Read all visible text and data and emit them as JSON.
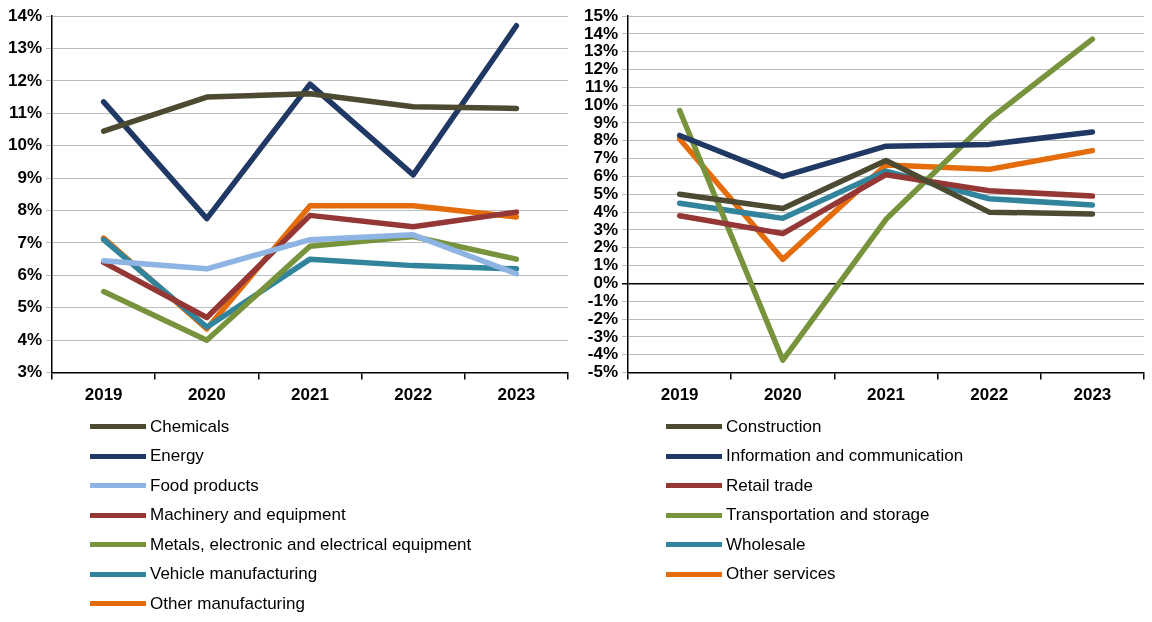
{
  "chart_data": [
    {
      "type": "line",
      "categories": [
        "2019",
        "2020",
        "2021",
        "2022",
        "2023"
      ],
      "ylim": [
        3,
        14
      ],
      "yticks": [
        {
          "value": 3,
          "label": "3%"
        },
        {
          "value": 4,
          "label": "4%"
        },
        {
          "value": 5,
          "label": "5%"
        },
        {
          "value": 6,
          "label": "6%"
        },
        {
          "value": 7,
          "label": "7%"
        },
        {
          "value": 8,
          "label": "8%"
        },
        {
          "value": 9,
          "label": "9%"
        },
        {
          "value": 10,
          "label": "10%"
        },
        {
          "value": 11,
          "label": "11%"
        },
        {
          "value": 12,
          "label": "12%"
        },
        {
          "value": 13,
          "label": "13%"
        },
        {
          "value": 14,
          "label": "14%"
        }
      ],
      "grid": "y",
      "legend": "bottom",
      "marker": "none",
      "line_style": "solid",
      "series": [
        {
          "name": "Chemicals",
          "color": "#4d4a32",
          "values": [
            10.45,
            11.5,
            11.6,
            11.2,
            11.15
          ]
        },
        {
          "name": "Energy",
          "color": "#1f3864",
          "values": [
            11.35,
            7.75,
            11.9,
            9.1,
            13.7
          ]
        },
        {
          "name": "Food products",
          "color": "#8db4e2",
          "values": [
            6.45,
            6.2,
            7.1,
            7.25,
            6.05
          ]
        },
        {
          "name": "Machinery and equipment",
          "color": "#953735",
          "values": [
            6.4,
            4.7,
            7.85,
            7.5,
            7.95
          ]
        },
        {
          "name": "Metals, electronic and electrical equipment",
          "color": "#77933c",
          "values": [
            5.5,
            4.0,
            6.9,
            7.2,
            6.5
          ]
        },
        {
          "name": "Vehicle manufacturing",
          "color": "#31849b",
          "values": [
            7.1,
            4.4,
            6.5,
            6.3,
            6.2
          ]
        },
        {
          "name": "Other manufacturing",
          "color": "#e46c0a",
          "values": [
            7.15,
            4.35,
            8.15,
            8.15,
            7.8
          ]
        }
      ]
    },
    {
      "type": "line",
      "categories": [
        "2019",
        "2020",
        "2021",
        "2022",
        "2023"
      ],
      "ylim": [
        -5,
        15
      ],
      "yticks": [
        {
          "value": -5,
          "label": "-5%"
        },
        {
          "value": -4,
          "label": "-4%"
        },
        {
          "value": -3,
          "label": "-3%"
        },
        {
          "value": -2,
          "label": "-2%"
        },
        {
          "value": -1,
          "label": "-1%"
        },
        {
          "value": 0,
          "label": "0%"
        },
        {
          "value": 1,
          "label": "1%"
        },
        {
          "value": 2,
          "label": "2%"
        },
        {
          "value": 3,
          "label": "3%"
        },
        {
          "value": 4,
          "label": "4%"
        },
        {
          "value": 5,
          "label": "5%"
        },
        {
          "value": 6,
          "label": "6%"
        },
        {
          "value": 7,
          "label": "7%"
        },
        {
          "value": 8,
          "label": "8%"
        },
        {
          "value": 9,
          "label": "9%"
        },
        {
          "value": 10,
          "label": "10%"
        },
        {
          "value": 11,
          "label": "11%"
        },
        {
          "value": 12,
          "label": "12%"
        },
        {
          "value": 13,
          "label": "13%"
        },
        {
          "value": 14,
          "label": "14%"
        },
        {
          "value": 15,
          "label": "15%"
        }
      ],
      "grid": "y",
      "legend": "bottom",
      "marker": "none",
      "line_style": "solid",
      "series": [
        {
          "name": "Construction",
          "color": "#4d4a32",
          "values": [
            5.0,
            4.2,
            6.9,
            4.0,
            3.9
          ]
        },
        {
          "name": "Information and communication",
          "color": "#1f3864",
          "values": [
            8.3,
            6.0,
            7.7,
            7.8,
            8.5
          ]
        },
        {
          "name": "Retail trade",
          "color": "#953735",
          "values": [
            3.8,
            2.8,
            6.1,
            5.2,
            4.9
          ]
        },
        {
          "name": "Transportation and storage",
          "color": "#77933c",
          "values": [
            9.7,
            -4.3,
            3.6,
            9.2,
            13.7
          ]
        },
        {
          "name": "Wholesale",
          "color": "#31849b",
          "values": [
            4.5,
            3.65,
            6.3,
            4.75,
            4.4
          ]
        },
        {
          "name": "Other services",
          "color": "#e46c0a",
          "values": [
            8.1,
            1.35,
            6.65,
            6.4,
            7.45
          ]
        }
      ]
    }
  ]
}
